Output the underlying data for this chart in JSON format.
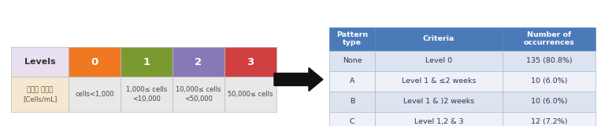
{
  "left_table": {
    "header_label": "Levels",
    "header_bg": "#e8e0f0",
    "levels": [
      "0",
      "1",
      "2",
      "3"
    ],
    "level_colors": [
      "#f07820",
      "#7a9a30",
      "#8878b8",
      "#d04040"
    ],
    "row_label": "남조류 세포수\n[Cells/mL]",
    "row_label_bg": "#f5e8d0",
    "row_values": [
      "cells<1,000",
      "1,000≤ cells\n<10,000",
      "10,000≤ cells\n<50,000",
      "50,000≤ cells"
    ],
    "row_bg": "#e8e8e8"
  },
  "right_table": {
    "headers": [
      "Pattern\ntype",
      "Criteria",
      "Number of\noccurrences"
    ],
    "header_bg": "#4a7ab8",
    "header_fg": "#ffffff",
    "row_bgs": [
      "#dce4f0",
      "#eef1f8",
      "#dce4f0",
      "#eef1f8"
    ],
    "rows": [
      [
        "None",
        "Level 0",
        "135 (80.8%)"
      ],
      [
        "A",
        "Level 1 & ≤2 weeks",
        "10 (6.0%)"
      ],
      [
        "B",
        "Level 1 & )2 weeks",
        "10 (6.0%)"
      ],
      [
        "C",
        "Level 1,2 & 3",
        "12 (7.2%)"
      ]
    ]
  },
  "arrow_color": "#111111",
  "bg_color": "#ffffff",
  "figsize": [
    7.63,
    1.61
  ],
  "dpi": 100
}
